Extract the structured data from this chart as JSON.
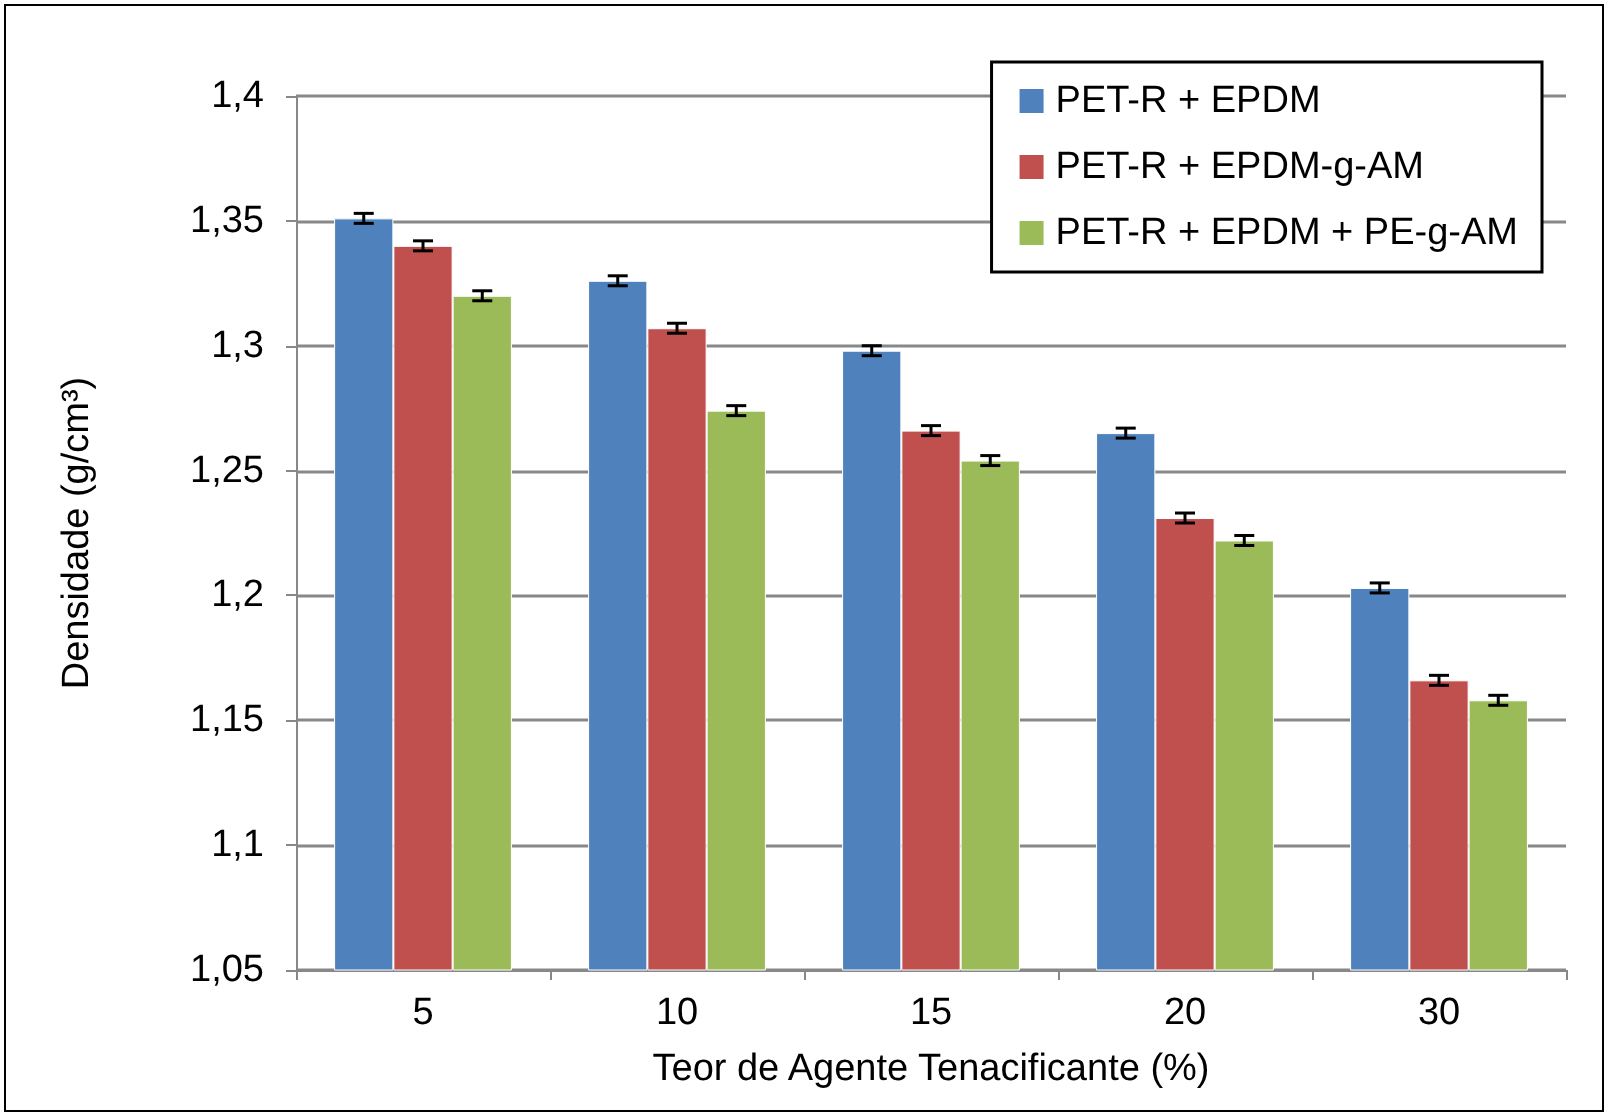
{
  "chart_data": {
    "type": "bar",
    "xlabel": "Teor de Agente Tenacificante (%)",
    "ylabel": "Densidade (g/cm³)",
    "categories": [
      "5",
      "10",
      "15",
      "20",
      "30"
    ],
    "series": [
      {
        "name": "PET-R + EPDM",
        "color": "#4f81bd",
        "values": [
          1.351,
          1.326,
          1.298,
          1.265,
          1.203
        ],
        "errors": [
          0.002,
          0.002,
          0.002,
          0.002,
          0.002
        ]
      },
      {
        "name": "PET-R + EPDM-g-AM",
        "color": "#c0504d",
        "values": [
          1.34,
          1.307,
          1.266,
          1.231,
          1.166
        ],
        "errors": [
          0.002,
          0.002,
          0.002,
          0.002,
          0.002
        ]
      },
      {
        "name": "PET-R + EPDM + PE-g-AM",
        "color": "#9bbb59",
        "values": [
          1.32,
          1.274,
          1.254,
          1.222,
          1.158
        ],
        "errors": [
          0.002,
          0.002,
          0.002,
          0.002,
          0.002
        ]
      }
    ],
    "ylim": [
      1.05,
      1.4
    ],
    "yticks": [
      {
        "value": 1.05,
        "label": "1,05"
      },
      {
        "value": 1.1,
        "label": "1,1"
      },
      {
        "value": 1.15,
        "label": "1,15"
      },
      {
        "value": 1.2,
        "label": "1,2"
      },
      {
        "value": 1.25,
        "label": "1,25"
      },
      {
        "value": 1.3,
        "label": "1,3"
      },
      {
        "value": 1.35,
        "label": "1,35"
      },
      {
        "value": 1.4,
        "label": "1,4"
      }
    ],
    "grid": "y",
    "legend": "top right"
  }
}
